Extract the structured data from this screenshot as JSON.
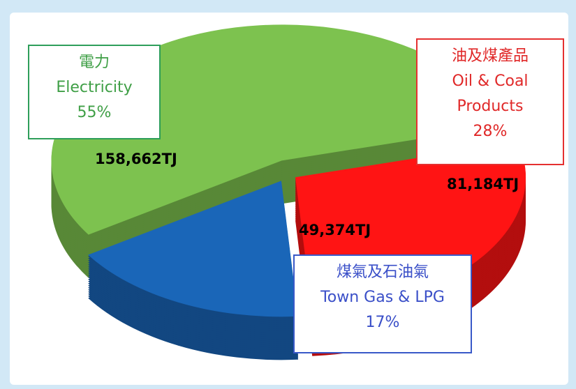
{
  "chart_data": {
    "type": "pie",
    "categories_zh": [
      "電力",
      "油及煤產品",
      "煤氣及石油氣"
    ],
    "categories": [
      "Electricity",
      "Oil & Coal Products",
      "Town Gas & LPG"
    ],
    "values": [
      55,
      28,
      17
    ],
    "value_labels": [
      "55%",
      "28%",
      "17%"
    ],
    "energy_values": [
      158662,
      81184,
      49374
    ],
    "energy_labels": [
      "158,662TJ",
      "81,184TJ",
      "49,374TJ"
    ],
    "colors": [
      "#7dc24f",
      "#ff1414",
      "#1a66b8"
    ]
  }
}
